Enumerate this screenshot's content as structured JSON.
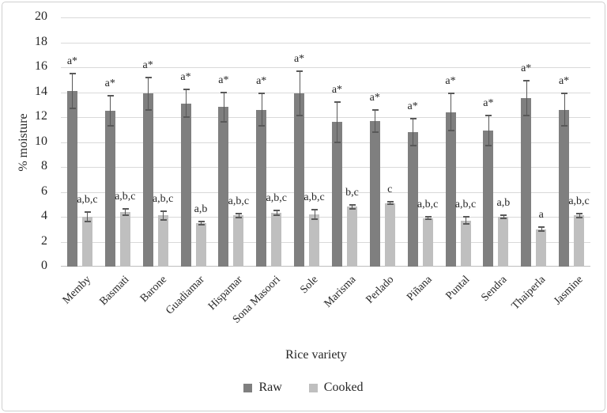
{
  "chart_data": {
    "type": "bar",
    "title": "",
    "xlabel": "Rice variety",
    "ylabel": "% moisture",
    "ylim": [
      0,
      20
    ],
    "ytick_step": 2,
    "grid": true,
    "legend_position": "bottom",
    "categories": [
      "Memby",
      "Basmati",
      "Barone",
      "Guadiamar",
      "Hispamar",
      "Sona Masoori",
      "Sole",
      "Marisma",
      "Perlado",
      "Piñana",
      "Puntal",
      "Sendra",
      "Thaiperla",
      "Jasmine"
    ],
    "series": [
      {
        "name": "Raw",
        "color": "#7f7f7f",
        "values": [
          14.1,
          12.5,
          13.9,
          13.1,
          12.8,
          12.6,
          13.9,
          11.6,
          11.7,
          10.8,
          12.4,
          10.9,
          13.5,
          12.6
        ],
        "errors": [
          1.4,
          1.2,
          1.3,
          1.1,
          1.2,
          1.3,
          1.8,
          1.6,
          0.9,
          1.1,
          1.5,
          1.2,
          1.4,
          1.3
        ],
        "labels": [
          "a*",
          "a*",
          "a*",
          "a*",
          "a*",
          "a*",
          "a*",
          "a*",
          "a*",
          "a*",
          "a*",
          "a*",
          "a*",
          "a*"
        ]
      },
      {
        "name": "Cooked",
        "color": "#bfbfbf",
        "values": [
          4.0,
          4.4,
          4.1,
          3.5,
          4.1,
          4.3,
          4.2,
          4.8,
          5.1,
          3.9,
          3.7,
          4.0,
          3.0,
          4.1
        ],
        "errors": [
          0.35,
          0.25,
          0.35,
          0.15,
          0.15,
          0.2,
          0.4,
          0.15,
          0.08,
          0.12,
          0.3,
          0.15,
          0.15,
          0.15
        ],
        "labels": [
          "a,b,c",
          "a,b,c",
          "a,b,c",
          "a,b",
          "a,b,c",
          "a,b,c",
          "a,b,c",
          "b,c",
          "c",
          "a,b,c",
          "a,b,c",
          "a,b",
          "a",
          "a,b,c"
        ]
      }
    ],
    "colors": {
      "gridline": "#d9d9d9",
      "error_bar": "#595959",
      "text": "#262626",
      "frame_border": "#cfcfcf"
    }
  }
}
